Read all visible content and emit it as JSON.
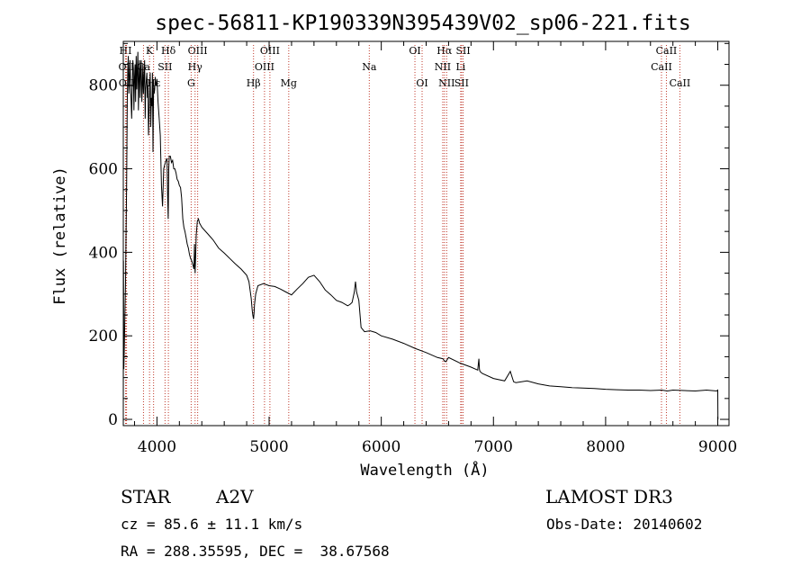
{
  "chart_data": {
    "type": "line",
    "title": "spec-56811-KP190339N395439V02_sp06-221.fits",
    "xlabel": "Wavelength (Å)",
    "ylabel": "Flux (relative)",
    "xlim": [
      3700,
      9100
    ],
    "ylim": [
      -15,
      905
    ],
    "xticks": [
      4000,
      5000,
      6000,
      7000,
      8000,
      9000
    ],
    "yticks": [
      0,
      200,
      400,
      600,
      800
    ],
    "series": [
      {
        "name": "flux",
        "x": [
          3700,
          3702,
          3705,
          3710,
          3715,
          3720,
          3725,
          3730,
          3735,
          3740,
          3745,
          3750,
          3755,
          3760,
          3765,
          3770,
          3775,
          3780,
          3785,
          3790,
          3795,
          3800,
          3805,
          3810,
          3815,
          3820,
          3825,
          3830,
          3835,
          3840,
          3845,
          3850,
          3855,
          3860,
          3865,
          3870,
          3875,
          3880,
          3885,
          3890,
          3895,
          3900,
          3905,
          3910,
          3915,
          3920,
          3925,
          3930,
          3935,
          3940,
          3945,
          3950,
          3955,
          3960,
          3965,
          3970,
          3975,
          3980,
          3985,
          3990,
          3995,
          4000,
          4010,
          4020,
          4030,
          4040,
          4050,
          4060,
          4070,
          4080,
          4090,
          4095,
          4100,
          4105,
          4110,
          4120,
          4130,
          4140,
          4150,
          4160,
          4170,
          4180,
          4190,
          4200,
          4210,
          4220,
          4230,
          4240,
          4250,
          4260,
          4270,
          4280,
          4290,
          4300,
          4310,
          4320,
          4330,
          4335,
          4340,
          4345,
          4350,
          4360,
          4370,
          4380,
          4390,
          4400,
          4450,
          4500,
          4550,
          4600,
          4650,
          4700,
          4750,
          4800,
          4820,
          4840,
          4850,
          4855,
          4861,
          4866,
          4870,
          4880,
          4900,
          4950,
          5000,
          5050,
          5100,
          5150,
          5200,
          5250,
          5300,
          5350,
          5400,
          5450,
          5500,
          5550,
          5600,
          5650,
          5700,
          5720,
          5740,
          5760,
          5770,
          5780,
          5800,
          5820,
          5850,
          5900,
          5950,
          6000,
          6100,
          6200,
          6300,
          6400,
          6500,
          6550,
          6563,
          6575,
          6600,
          6700,
          6800,
          6860,
          6870,
          6875,
          6880,
          6900,
          7000,
          7100,
          7150,
          7170,
          7180,
          7200,
          7300,
          7400,
          7500,
          7600,
          7700,
          7800,
          7900,
          8000,
          8100,
          8200,
          8300,
          8400,
          8500,
          8550,
          8600,
          8700,
          8800,
          8900,
          8990,
          9000,
          9001
        ],
        "values": [
          0,
          380,
          120,
          180,
          260,
          330,
          450,
          560,
          760,
          840,
          870,
          780,
          820,
          860,
          800,
          760,
          720,
          800,
          860,
          840,
          740,
          820,
          850,
          760,
          870,
          790,
          840,
          880,
          740,
          810,
          860,
          770,
          840,
          860,
          760,
          800,
          850,
          780,
          820,
          860,
          720,
          790,
          810,
          830,
          770,
          800,
          680,
          740,
          790,
          830,
          700,
          770,
          750,
          830,
          640,
          800,
          780,
          790,
          820,
          800,
          800,
          815,
          760,
          720,
          680,
          560,
          510,
          600,
          610,
          620,
          625,
          540,
          480,
          600,
          630,
          630,
          615,
          620,
          600,
          600,
          590,
          575,
          570,
          560,
          555,
          530,
          480,
          460,
          450,
          435,
          420,
          410,
          395,
          385,
          380,
          370,
          360,
          420,
          350,
          390,
          440,
          475,
          480,
          470,
          465,
          460,
          445,
          430,
          410,
          398,
          385,
          372,
          360,
          345,
          330,
          290,
          260,
          250,
          240,
          255,
          275,
          300,
          320,
          325,
          320,
          318,
          312,
          305,
          298,
          312,
          325,
          340,
          345,
          330,
          310,
          298,
          285,
          280,
          272,
          275,
          280,
          305,
          330,
          305,
          285,
          220,
          210,
          212,
          208,
          200,
          192,
          182,
          170,
          160,
          148,
          145,
          140,
          138,
          148,
          135,
          125,
          118,
          145,
          120,
          115,
          110,
          98,
          92,
          115,
          98,
          90,
          88,
          92,
          85,
          80,
          78,
          76,
          75,
          74,
          72,
          71,
          70,
          70,
          69,
          70,
          68,
          70,
          69,
          68,
          70,
          68,
          70,
          0
        ]
      }
    ],
    "lines": [
      {
        "label": "HI",
        "x": 3720,
        "row": 0
      },
      {
        "label": "K",
        "x": 3934,
        "row": 0
      },
      {
        "label": "Hδ",
        "x": 4102,
        "row": 0
      },
      {
        "label": "OIII",
        "x": 4363,
        "row": 0
      },
      {
        "label": "OIII",
        "x": 5007,
        "row": 0
      },
      {
        "label": "OI",
        "x": 6300,
        "row": 0
      },
      {
        "label": "Hα",
        "x": 6563,
        "row": 0
      },
      {
        "label": "SII",
        "x": 6730,
        "row": 0
      },
      {
        "label": "CaII",
        "x": 8542,
        "row": 0
      },
      {
        "label": "OII",
        "x": 3727,
        "row": 1
      },
      {
        "label": "Ca",
        "x": 3880,
        "row": 1
      },
      {
        "label": "SII",
        "x": 4072,
        "row": 1
      },
      {
        "label": "Hγ",
        "x": 4340,
        "row": 1
      },
      {
        "label": "OIII",
        "x": 4959,
        "row": 1
      },
      {
        "label": "Na",
        "x": 5893,
        "row": 1
      },
      {
        "label": "NII",
        "x": 6548,
        "row": 1
      },
      {
        "label": "Li",
        "x": 6708,
        "row": 1
      },
      {
        "label": "CaII",
        "x": 8498,
        "row": 1
      },
      {
        "label": "OII",
        "x": 3729,
        "row": 2
      },
      {
        "label": "Hε",
        "x": 3970,
        "row": 2
      },
      {
        "label": "G",
        "x": 4305,
        "row": 2
      },
      {
        "label": "Hβ",
        "x": 4861,
        "row": 2
      },
      {
        "label": "Mg",
        "x": 5175,
        "row": 2
      },
      {
        "label": "OI",
        "x": 6364,
        "row": 2
      },
      {
        "label": "NII",
        "x": 6583,
        "row": 2
      },
      {
        "label": "SII",
        "x": 6716,
        "row": 2
      },
      {
        "label": "CaII",
        "x": 8662,
        "row": 2
      }
    ]
  },
  "info": {
    "class": "STAR",
    "subclass": "A2V",
    "survey": "LAMOST DR3",
    "cz": "cz = 85.6 ± 11.1 km/s",
    "obs_date": "Obs-Date: 20140602",
    "coords": "RA = 288.35595, DEC =  38.67568"
  }
}
